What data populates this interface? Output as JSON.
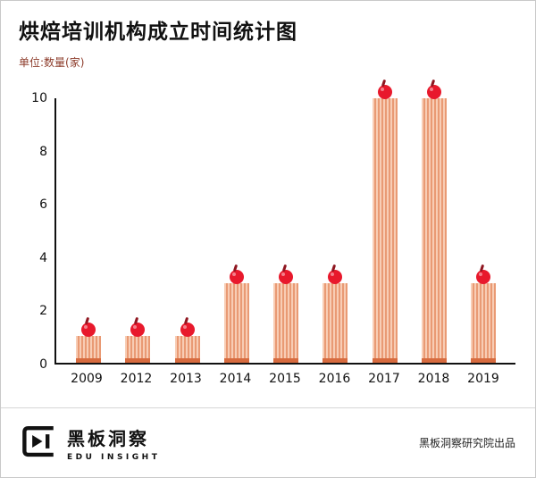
{
  "title": "烘焙培训机构成立时间统计图",
  "subtitle": "单位:数量(家)",
  "footer": {
    "brand_cn": "黑板洞察",
    "brand_en": "EDU INSIGHT",
    "credit": "黑板洞察研究院出品"
  },
  "colors": {
    "bar_light": "#f8cdb5",
    "bar_stripe": "#e99a74",
    "bar_base": "#d76b3f",
    "cherry_red": "#e8192c",
    "subtitle_text": "#8d3c2b",
    "axis": "#111111"
  },
  "chart_data": {
    "type": "bar",
    "categories": [
      "2009",
      "2012",
      "2013",
      "2014",
      "2015",
      "2016",
      "2017",
      "2018",
      "2019"
    ],
    "values": [
      1,
      1,
      1,
      3,
      3,
      3,
      10,
      10,
      3
    ],
    "title": "烘焙培训机构成立时间统计图",
    "xlabel": "",
    "ylabel": "数量(家)",
    "ylim": [
      0,
      10
    ],
    "yticks": [
      0,
      2,
      4,
      6,
      8,
      10
    ],
    "grid": false,
    "legend": false,
    "bar_style": "striped cupcake bars with red cherry marker on top"
  }
}
